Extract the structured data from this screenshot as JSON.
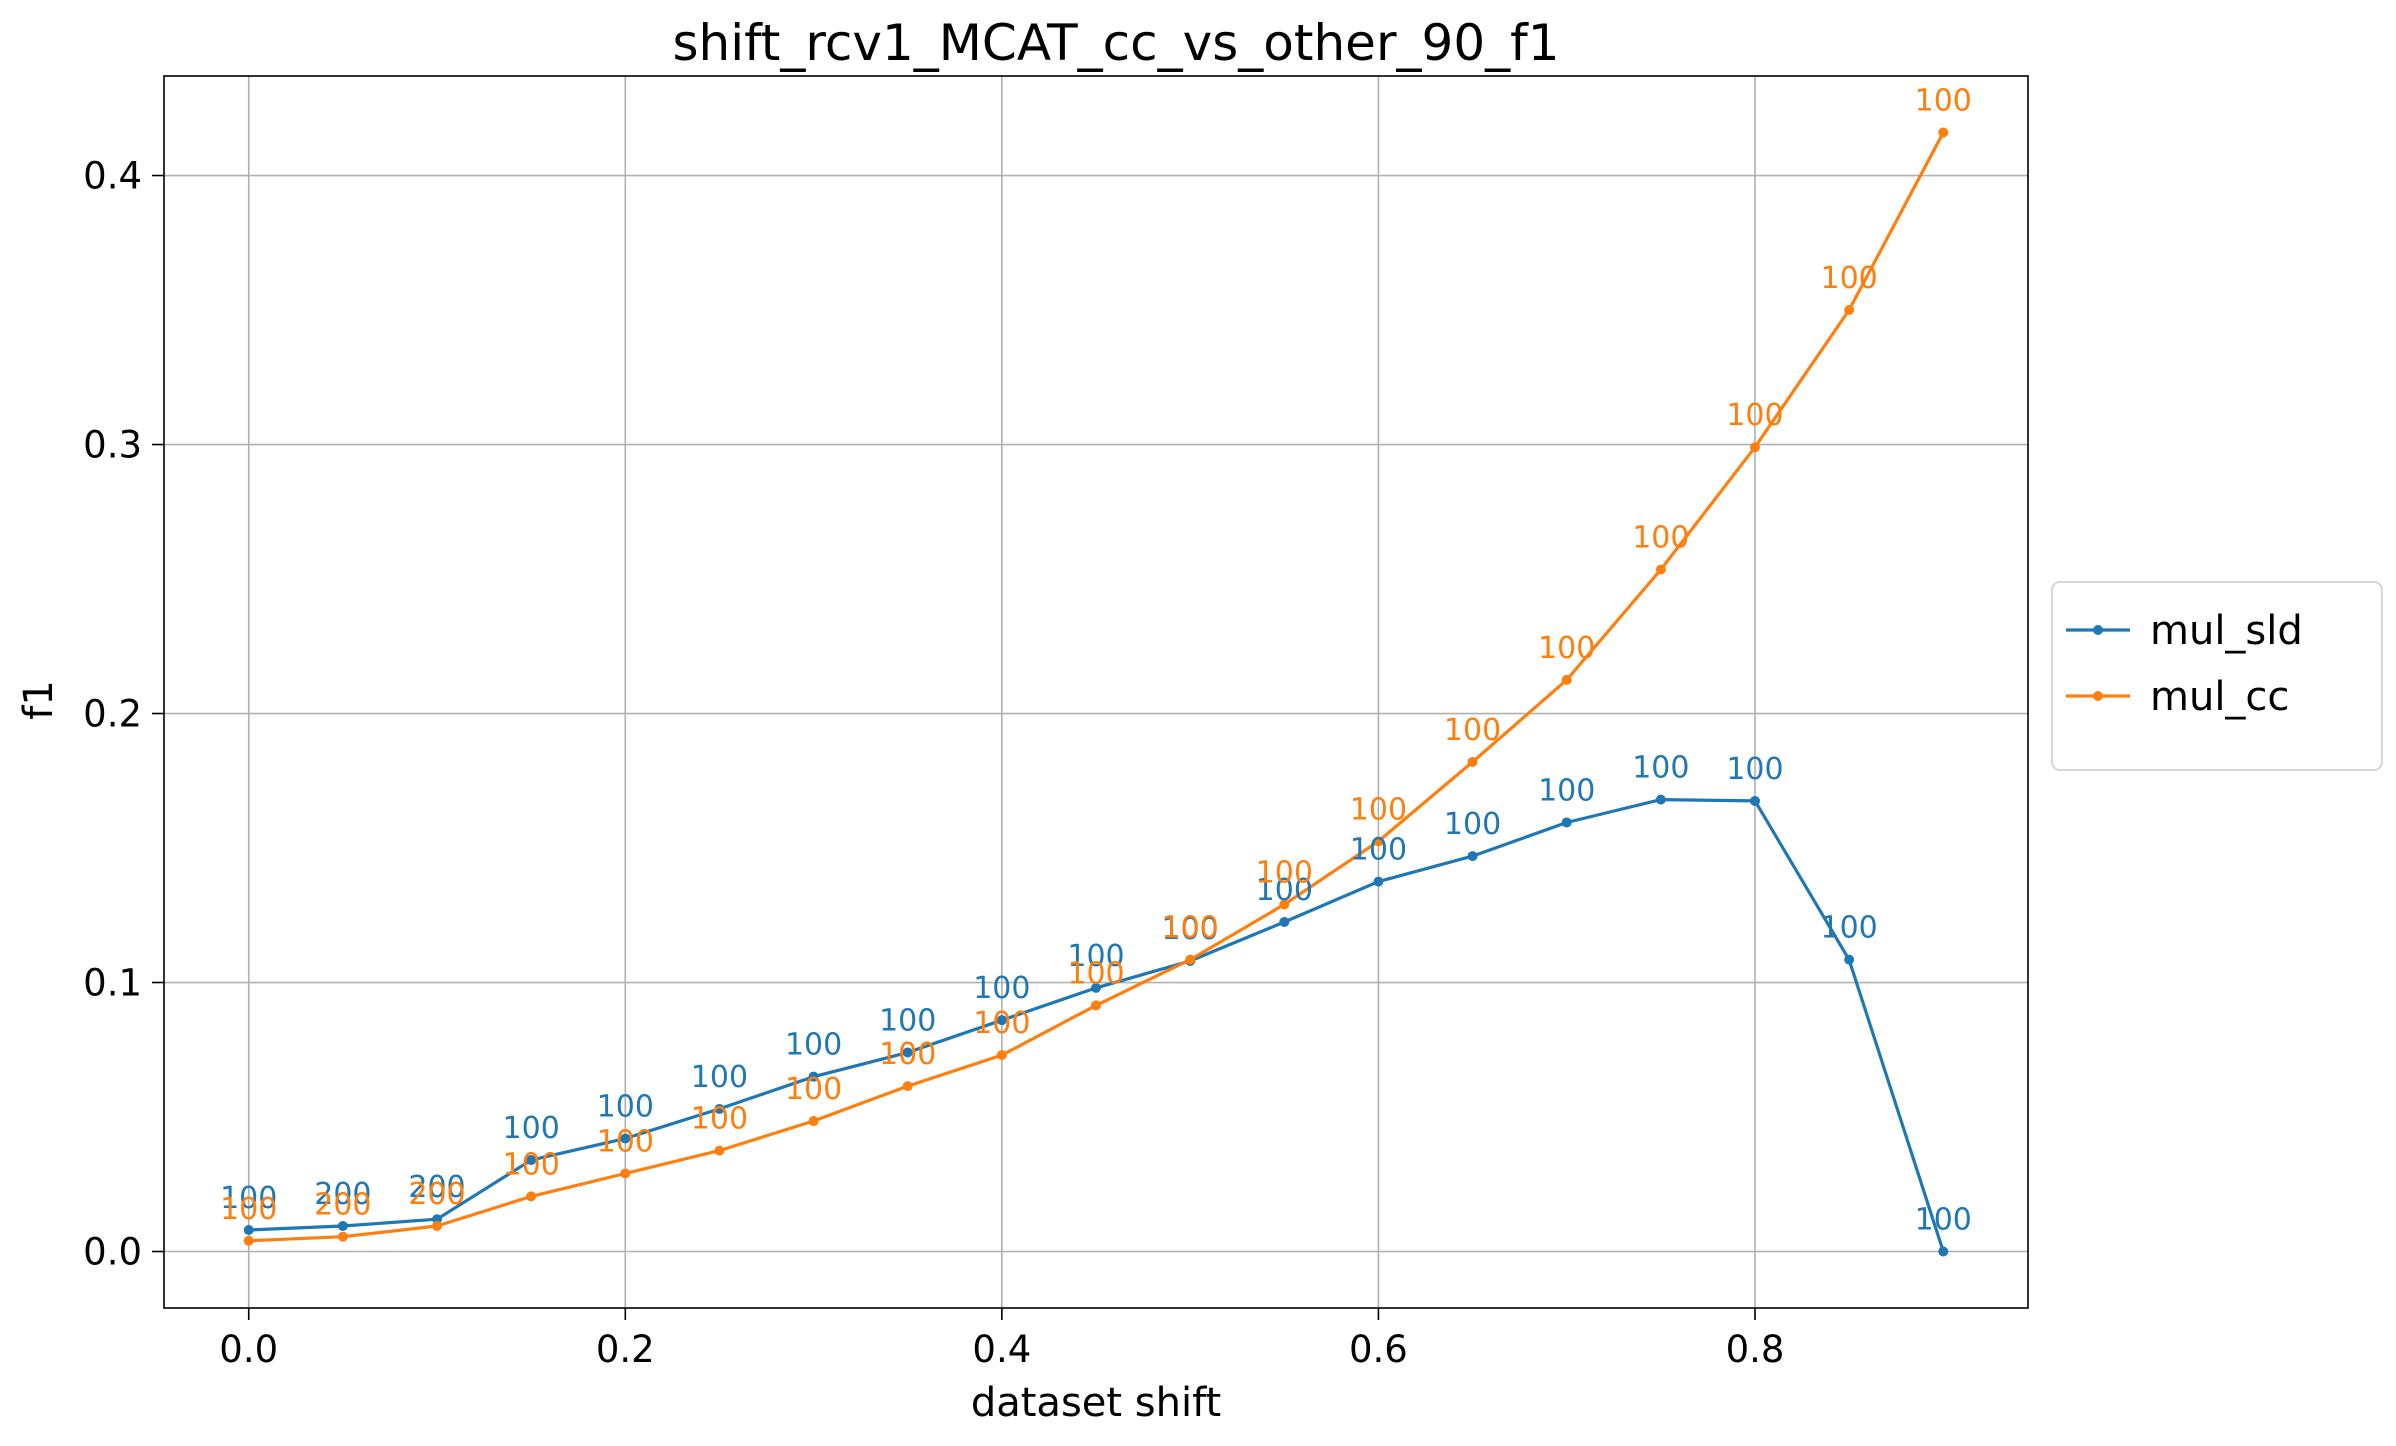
{
  "chart_data": {
    "type": "line",
    "title": "shift_rcv1_MCAT_cc_vs_other_90_f1",
    "xlabel": "dataset shift",
    "ylabel": "f1",
    "xlim": [
      -0.045,
      0.945
    ],
    "ylim": [
      -0.021,
      0.437
    ],
    "xticks": [
      0.0,
      0.2,
      0.4,
      0.6,
      0.8
    ],
    "xtick_labels": [
      "0.0",
      "0.2",
      "0.4",
      "0.6",
      "0.8"
    ],
    "yticks": [
      0.0,
      0.1,
      0.2,
      0.3,
      0.4
    ],
    "ytick_labels": [
      "0.0",
      "0.1",
      "0.2",
      "0.3",
      "0.4"
    ],
    "grid": true,
    "legend_position": "outside-right",
    "x": [
      0.0,
      0.05,
      0.1,
      0.15,
      0.2,
      0.25,
      0.3,
      0.35,
      0.4,
      0.45,
      0.5,
      0.55,
      0.6,
      0.65,
      0.7,
      0.75,
      0.8,
      0.85,
      0.9
    ],
    "series": [
      {
        "name": "mul_sld",
        "color": "#1f77b4",
        "values": [
          0.008,
          0.0095,
          0.012,
          0.034,
          0.042,
          0.053,
          0.065,
          0.074,
          0.086,
          0.098,
          0.108,
          0.1225,
          0.1375,
          0.147,
          0.1595,
          0.168,
          0.1675,
          0.1085,
          0.0
        ],
        "labels": [
          "100",
          "200",
          "200",
          "100",
          "100",
          "100",
          "100",
          "100",
          "100",
          "100",
          "100",
          "100",
          "100",
          "100",
          "100",
          "100",
          "100",
          "100",
          "100"
        ]
      },
      {
        "name": "mul_cc",
        "color": "#ff7f0e",
        "values": [
          0.004,
          0.0055,
          0.0095,
          0.0205,
          0.029,
          0.0375,
          0.0485,
          0.0615,
          0.073,
          0.0915,
          0.1085,
          0.129,
          0.1525,
          0.182,
          0.2125,
          0.2535,
          0.299,
          0.35,
          0.416
        ],
        "labels": [
          "100",
          "200",
          "200",
          "100",
          "100",
          "100",
          "100",
          "100",
          "100",
          "100",
          "100",
          "100",
          "100",
          "100",
          "100",
          "100",
          "100",
          "100",
          "100"
        ]
      }
    ]
  }
}
